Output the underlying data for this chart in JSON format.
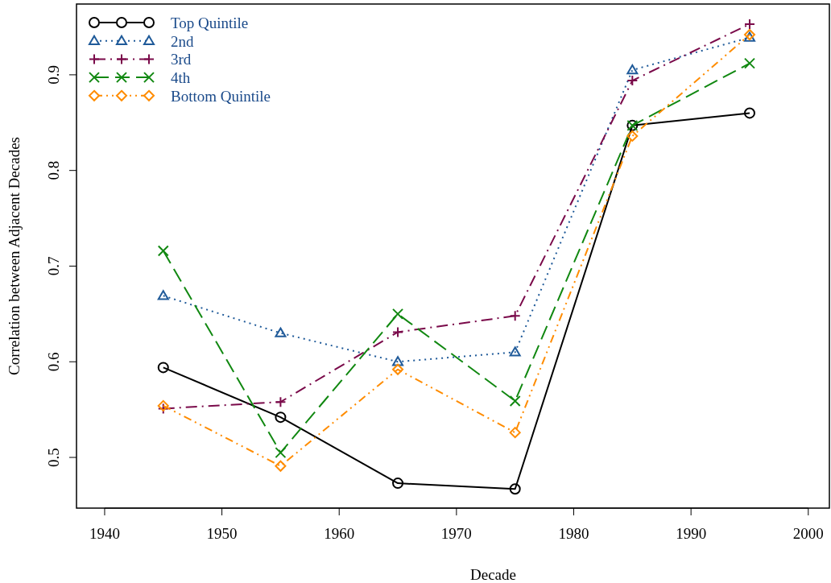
{
  "chart_data": {
    "type": "line",
    "xlabel": "Decade",
    "ylabel": "Correlation between Adjacent Decades",
    "x": [
      1945,
      1955,
      1965,
      1975,
      1985,
      1995
    ],
    "series": [
      {
        "name": "Top Quintile",
        "color": "#000000",
        "marker": "circle",
        "line_style": "solid",
        "values": [
          0.594,
          0.542,
          0.473,
          0.467,
          0.847,
          0.86
        ]
      },
      {
        "name": "2nd",
        "color": "#1f5a99",
        "marker": "triangle",
        "line_style": "dotted",
        "values": [
          0.669,
          0.63,
          0.6,
          0.61,
          0.905,
          0.939
        ]
      },
      {
        "name": "3rd",
        "color": "#7a0a4a",
        "marker": "plus",
        "line_style": "dashdot",
        "values": [
          0.551,
          0.558,
          0.631,
          0.648,
          0.894,
          0.953
        ]
      },
      {
        "name": "4th",
        "color": "#118811",
        "marker": "cross",
        "line_style": "dashed",
        "values": [
          0.716,
          0.505,
          0.65,
          0.559,
          0.847,
          0.912
        ]
      },
      {
        "name": "Bottom Quintile",
        "color": "#ff8c00",
        "marker": "diamond",
        "line_style": "dashdotdot",
        "values": [
          0.554,
          0.491,
          0.592,
          0.526,
          0.836,
          0.942
        ]
      }
    ],
    "xlim": [
      1937.6,
      2001.8
    ],
    "ylim": [
      0.447,
      0.974
    ],
    "xticks": [
      1940,
      1950,
      1960,
      1970,
      1980,
      1990,
      2000
    ],
    "yticks": [
      0.5,
      0.6,
      0.7,
      0.8,
      0.9
    ],
    "grid": false,
    "legend": "top left"
  }
}
